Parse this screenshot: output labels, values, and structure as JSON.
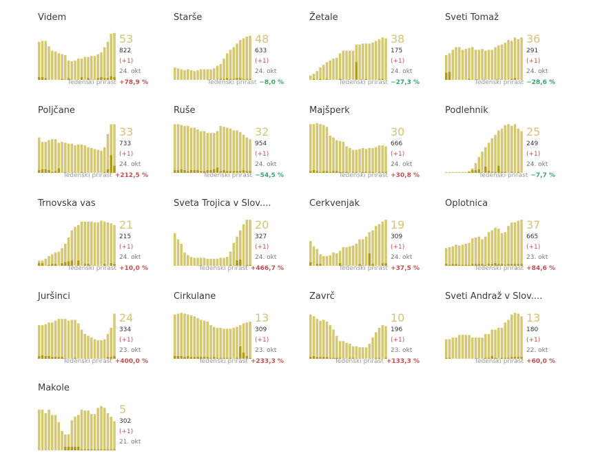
{
  "colors": {
    "bar": "#d6c873",
    "bar_dark": "#b09a1e",
    "accent_num": "#d2c27a",
    "pos": "#c0504d",
    "neg": "#3aa56b"
  },
  "growth_label": "Tedenski prirast",
  "chart_data": [
    {
      "type": "bar",
      "name": "Videm",
      "active": "53",
      "total": "822",
      "delta": "(+1)",
      "date": "24. okt",
      "growth": "+78,9 %",
      "growth_sign": "pos",
      "values": [
        43,
        44,
        44,
        38,
        33,
        32,
        30,
        29,
        28,
        22,
        21,
        22,
        24,
        24,
        26,
        26,
        27,
        27,
        29,
        31,
        37,
        43,
        52,
        53
      ],
      "new": [
        3,
        3,
        2,
        0,
        0,
        0,
        0,
        1,
        0,
        2,
        0,
        0,
        0,
        3,
        0,
        2,
        0,
        0,
        2,
        3,
        2,
        2,
        4,
        3
      ]
    },
    {
      "title_raw": "Starše",
      "type": "bar",
      "name": "Starše",
      "active": "48",
      "total": "633",
      "delta": "(+1)",
      "date": "24. okt",
      "growth": "−8,0 %",
      "growth_sign": "neg",
      "values": [
        14,
        13,
        12,
        11,
        12,
        11,
        10,
        11,
        12,
        12,
        12,
        12,
        13,
        16,
        18,
        24,
        30,
        34,
        37,
        41,
        45,
        47,
        49,
        50
      ],
      "new": [
        0,
        0,
        0,
        0,
        0,
        0,
        0,
        0,
        0,
        0,
        0,
        0,
        0,
        0,
        1,
        1,
        2,
        1,
        1,
        2,
        2,
        1,
        1,
        1
      ]
    },
    {
      "type": "bar",
      "name": "Žetale",
      "active": "38",
      "total": "175",
      "delta": "(+1)",
      "date": "24. okt",
      "growth": "−27,3 %",
      "growth_sign": "neg",
      "values": [
        5,
        7,
        10,
        14,
        17,
        20,
        22,
        24,
        25,
        30,
        33,
        33,
        33,
        33,
        40,
        40,
        41,
        41,
        41,
        42,
        44,
        46,
        48,
        47
      ],
      "new": [
        0,
        1,
        0,
        1,
        0,
        1,
        0,
        0,
        0,
        1,
        0,
        0,
        0,
        0,
        20,
        0,
        0,
        1,
        0,
        0,
        0,
        1,
        1,
        0
      ]
    },
    {
      "type": "bar",
      "name": "Sveti Tomaž",
      "active": "36",
      "total": "291",
      "delta": "(+1)",
      "date": "24. okt",
      "growth": "−28,6 %",
      "growth_sign": "neg",
      "values": [
        28,
        30,
        34,
        37,
        37,
        34,
        35,
        36,
        37,
        34,
        34,
        35,
        33,
        34,
        34,
        37,
        39,
        40,
        42,
        45,
        44,
        48,
        46,
        48
      ],
      "new": [
        8,
        9,
        0,
        0,
        0,
        0,
        0,
        1,
        0,
        0,
        0,
        0,
        0,
        0,
        0,
        0,
        0,
        0,
        0,
        0,
        1,
        2,
        0,
        0
      ]
    },
    {
      "type": "bar",
      "name": "Poljčane",
      "active": "33",
      "total": "733",
      "delta": "(+1)",
      "date": "24. okt",
      "growth": "+212,5 %",
      "growth_sign": "pos",
      "values": [
        40,
        35,
        35,
        37,
        38,
        38,
        34,
        35,
        34,
        33,
        33,
        31,
        32,
        32,
        31,
        29,
        28,
        27,
        26,
        25,
        29,
        44,
        55,
        55
      ],
      "new": [
        3,
        4,
        4,
        3,
        1,
        2,
        5,
        0,
        0,
        0,
        0,
        0,
        0,
        1,
        0,
        0,
        0,
        0,
        0,
        0,
        1,
        4,
        20,
        8
      ]
    },
    {
      "type": "bar",
      "name": "Ruše",
      "active": "32",
      "total": "954",
      "delta": "(+1)",
      "date": "24. okt",
      "growth": "−54,5 %",
      "growth_sign": "neg",
      "values": [
        55,
        55,
        54,
        53,
        53,
        51,
        51,
        49,
        47,
        47,
        45,
        45,
        45,
        47,
        53,
        52,
        51,
        50,
        48,
        48,
        46,
        43,
        40,
        38
      ],
      "new": [
        3,
        3,
        4,
        3,
        2,
        3,
        3,
        3,
        2,
        2,
        3,
        3,
        4,
        6,
        2,
        3,
        2,
        2,
        2,
        2,
        2,
        3,
        2,
        2
      ]
    },
    {
      "type": "bar",
      "name": "Majšperk",
      "active": "30",
      "total": "666",
      "delta": "(+1)",
      "date": "24. okt",
      "growth": "+30,8 %",
      "growth_sign": "pos",
      "values": [
        55,
        55,
        56,
        55,
        54,
        52,
        42,
        40,
        37,
        36,
        35,
        30,
        28,
        26,
        26,
        27,
        28,
        27,
        28,
        28,
        29,
        31,
        31,
        30
      ],
      "new": [
        2,
        3,
        2,
        1,
        2,
        2,
        1,
        2,
        2,
        1,
        1,
        1,
        0,
        1,
        1,
        0,
        1,
        1,
        1,
        1,
        0,
        1,
        1,
        1
      ]
    },
    {
      "type": "bar",
      "name": "Podlehnik",
      "active": "25",
      "total": "249",
      "delta": "(+1)",
      "date": "24. okt",
      "growth": "−7,7 %",
      "growth_sign": "neg",
      "values": [
        1,
        1,
        1,
        1,
        1,
        1,
        1,
        2,
        5,
        11,
        18,
        24,
        29,
        34,
        39,
        43,
        48,
        50,
        54,
        55,
        53,
        55,
        50,
        47
      ],
      "new": [
        0,
        0,
        0,
        0,
        0,
        0,
        0,
        1,
        3,
        3,
        4,
        0,
        7,
        2,
        1,
        1,
        8,
        1,
        1,
        0,
        1,
        0,
        1,
        0
      ]
    },
    {
      "type": "bar",
      "name": "Trnovska vas",
      "active": "21",
      "total": "215",
      "delta": "(+1)",
      "date": "24. okt",
      "growth": "+10,0 %",
      "growth_sign": "pos",
      "values": [
        6,
        6,
        8,
        11,
        13,
        15,
        16,
        20,
        25,
        32,
        40,
        44,
        46,
        50,
        50,
        50,
        50,
        49,
        49,
        51,
        50,
        49,
        48,
        46
      ],
      "new": [
        3,
        3,
        0,
        1,
        2,
        2,
        0,
        3,
        4,
        5,
        6,
        0,
        6,
        0,
        2,
        2,
        0,
        0,
        0,
        0,
        2,
        0,
        3,
        2
      ]
    },
    {
      "type": "bar",
      "name": "Sveta Trojica v Slov....",
      "active": "20",
      "total": "327",
      "delta": "(+1)",
      "date": "24. okt",
      "growth": "+466,7 %",
      "growth_sign": "pos",
      "values": [
        37,
        30,
        25,
        15,
        12,
        10,
        9,
        9,
        9,
        9,
        8,
        8,
        8,
        8,
        9,
        9,
        10,
        16,
        26,
        33,
        40,
        47,
        52,
        52
      ],
      "new": [
        0,
        0,
        0,
        0,
        0,
        0,
        0,
        0,
        0,
        0,
        0,
        0,
        0,
        0,
        0,
        0,
        0,
        1,
        0,
        6,
        7,
        0,
        1,
        1
      ]
    },
    {
      "type": "bar",
      "name": "Cerkvenjak",
      "active": "19",
      "total": "309",
      "delta": "(+1)",
      "date": "24. okt",
      "growth": "+37,5 %",
      "growth_sign": "pos",
      "values": [
        28,
        22,
        19,
        13,
        11,
        11,
        12,
        15,
        14,
        17,
        21,
        21,
        22,
        23,
        25,
        30,
        30,
        33,
        38,
        40,
        45,
        47,
        50,
        52
      ],
      "new": [
        4,
        0,
        2,
        2,
        0,
        0,
        0,
        0,
        0,
        3,
        0,
        0,
        0,
        0,
        0,
        2,
        0,
        0,
        14,
        2,
        0,
        0,
        3,
        3
      ]
    },
    {
      "type": "bar",
      "name": "Oplotnica",
      "active": "37",
      "total": "665",
      "delta": "(+1)",
      "date": "23. okt",
      "growth": "+84,6 %",
      "growth_sign": "pos",
      "values": [
        20,
        21,
        22,
        24,
        23,
        24,
        25,
        26,
        31,
        32,
        33,
        30,
        33,
        38,
        40,
        43,
        42,
        37,
        38,
        45,
        49,
        49,
        51,
        52
      ],
      "new": [
        2,
        1,
        2,
        2,
        1,
        1,
        1,
        1,
        2,
        2,
        2,
        2,
        1,
        2,
        2,
        3,
        2,
        2,
        1,
        2,
        2,
        2,
        2,
        2
      ]
    },
    {
      "type": "bar",
      "name": "Juršinci",
      "active": "24",
      "total": "334",
      "delta": "(+1)",
      "date": "23. okt",
      "growth": "+400,0 %",
      "growth_sign": "pos",
      "values": [
        38,
        38,
        39,
        41,
        41,
        43,
        45,
        45,
        45,
        43,
        44,
        44,
        40,
        33,
        28,
        26,
        24,
        22,
        21,
        21,
        22,
        28,
        35,
        51
      ],
      "new": [
        3,
        4,
        3,
        3,
        2,
        2,
        2,
        2,
        0,
        0,
        0,
        1,
        0,
        0,
        0,
        0,
        0,
        0,
        0,
        0,
        0,
        2,
        2,
        3
      ]
    },
    {
      "type": "bar",
      "name": "Cirkulane",
      "active": "13",
      "total": "309",
      "delta": "(+1)",
      "date": "23. okt",
      "growth": "+233,3 %",
      "growth_sign": "pos",
      "values": [
        50,
        51,
        52,
        51,
        50,
        49,
        48,
        46,
        44,
        43,
        42,
        38,
        36,
        35,
        35,
        34,
        34,
        34,
        35,
        36,
        38,
        40,
        41,
        42
      ],
      "new": [
        3,
        3,
        3,
        2,
        3,
        2,
        2,
        2,
        2,
        2,
        2,
        1,
        2,
        1,
        1,
        1,
        1,
        1,
        0,
        1,
        14,
        7,
        3,
        1
      ]
    },
    {
      "type": "bar",
      "name": "Zavrč",
      "active": "10",
      "total": "196",
      "delta": "(+1)",
      "date": "23. okt",
      "growth": "+133,3 %",
      "growth_sign": "pos",
      "values": [
        50,
        48,
        45,
        43,
        44,
        42,
        38,
        33,
        26,
        20,
        20,
        18,
        17,
        14,
        14,
        13,
        13,
        13,
        17,
        24,
        30,
        35,
        38,
        37
      ],
      "new": [
        2,
        3,
        2,
        2,
        2,
        2,
        1,
        1,
        1,
        1,
        0,
        0,
        1,
        1,
        0,
        0,
        0,
        0,
        0,
        0,
        1,
        1,
        0,
        1
      ]
    },
    {
      "type": "bar",
      "name": "Sveti Andraž v Slov....",
      "active": "13",
      "total": "180",
      "delta": "(+1)",
      "date": "22. okt",
      "growth": "+60,0 %",
      "growth_sign": "pos",
      "values": [
        22,
        22,
        24,
        24,
        27,
        27,
        27,
        27,
        24,
        24,
        24,
        24,
        28,
        28,
        33,
        33,
        35,
        35,
        41,
        44,
        50,
        52,
        51,
        48
      ],
      "new": [
        1,
        1,
        0,
        0,
        0,
        0,
        0,
        0,
        0,
        0,
        0,
        0,
        1,
        1,
        3,
        1,
        0,
        1,
        1,
        1,
        2,
        2,
        2,
        2
      ]
    },
    {
      "type": "bar",
      "name": "Makole",
      "active": "5",
      "total": "302",
      "delta": "(+1)",
      "date": "21. okt",
      "growth": "",
      "growth_sign": "pos",
      "values": [
        46,
        46,
        42,
        46,
        40,
        40,
        32,
        22,
        18,
        18,
        34,
        38,
        40,
        46,
        45,
        45,
        41,
        41,
        48,
        50,
        48,
        42,
        38,
        33
      ],
      "new": [
        0,
        0,
        0,
        0,
        0,
        0,
        0,
        0,
        4,
        4,
        4,
        4,
        4,
        1,
        1,
        1,
        1,
        1,
        1,
        1,
        1,
        1,
        1,
        1
      ]
    }
  ]
}
